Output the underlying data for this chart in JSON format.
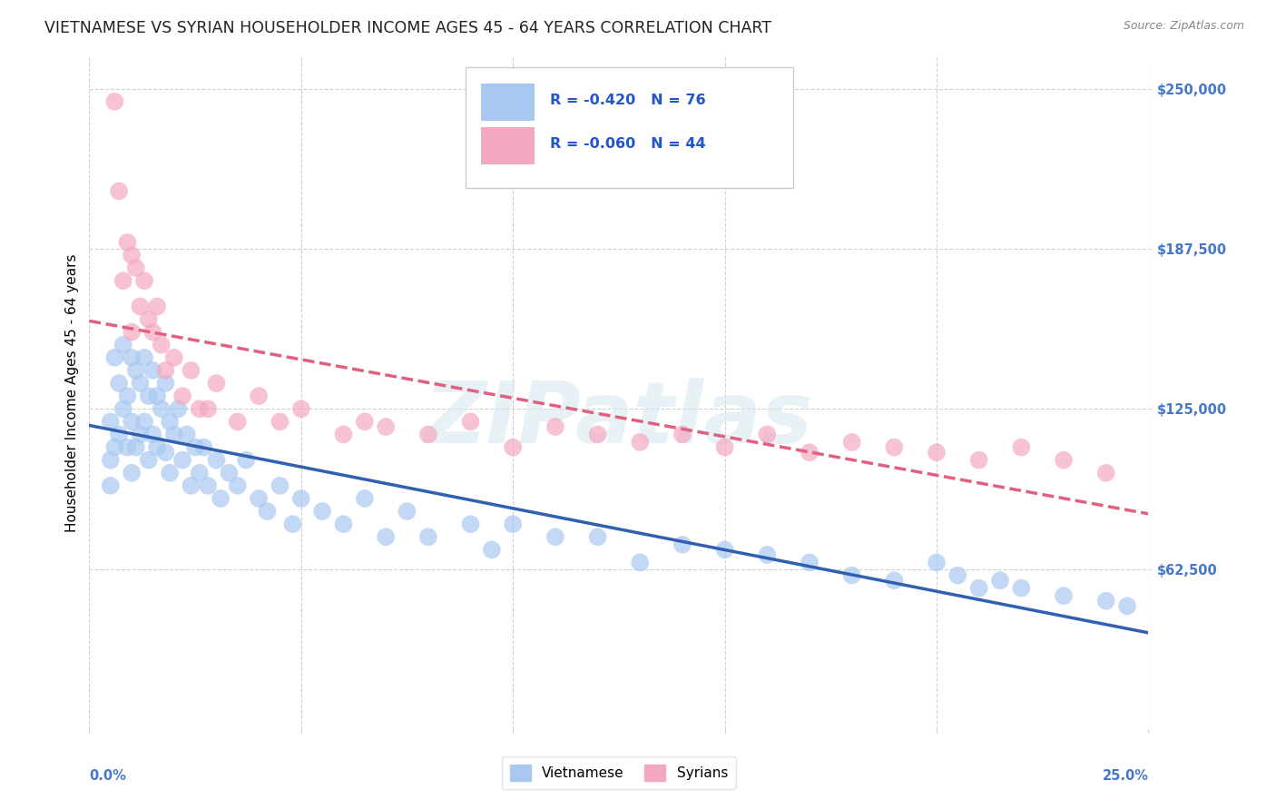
{
  "title": "VIETNAMESE VS SYRIAN HOUSEHOLDER INCOME AGES 45 - 64 YEARS CORRELATION CHART",
  "source": "Source: ZipAtlas.com",
  "ylabel": "Householder Income Ages 45 - 64 years",
  "ytick_labels": [
    "$62,500",
    "$125,000",
    "$187,500",
    "$250,000"
  ],
  "ytick_values": [
    62500,
    125000,
    187500,
    250000
  ],
  "ymin": 0,
  "ymax": 262500,
  "xmin": 0.0,
  "xmax": 0.25,
  "R_viet": -0.42,
  "N_viet": 76,
  "R_syr": -0.06,
  "N_syr": 44,
  "viet_color": "#a8c8f0",
  "syr_color": "#f4a8c0",
  "viet_line_color": "#3060b0",
  "syr_line_color": "#e06080",
  "background_color": "#ffffff",
  "grid_color": "#d0d0d0",
  "title_fontsize": 12.5,
  "axis_label_fontsize": 11,
  "tick_label_fontsize": 10.5,
  "legend_bottom": [
    "Vietnamese",
    "Syrians"
  ],
  "viet_x": [
    0.005,
    0.005,
    0.005,
    0.006,
    0.006,
    0.007,
    0.007,
    0.008,
    0.008,
    0.009,
    0.009,
    0.01,
    0.01,
    0.01,
    0.011,
    0.011,
    0.012,
    0.012,
    0.013,
    0.013,
    0.014,
    0.014,
    0.015,
    0.015,
    0.016,
    0.016,
    0.017,
    0.018,
    0.018,
    0.019,
    0.019,
    0.02,
    0.021,
    0.022,
    0.023,
    0.024,
    0.025,
    0.026,
    0.027,
    0.028,
    0.03,
    0.031,
    0.033,
    0.035,
    0.037,
    0.04,
    0.042,
    0.045,
    0.048,
    0.05,
    0.055,
    0.06,
    0.065,
    0.07,
    0.075,
    0.08,
    0.09,
    0.095,
    0.1,
    0.11,
    0.12,
    0.13,
    0.14,
    0.15,
    0.16,
    0.17,
    0.18,
    0.19,
    0.2,
    0.205,
    0.21,
    0.215,
    0.22,
    0.23,
    0.24,
    0.245
  ],
  "viet_y": [
    120000,
    105000,
    95000,
    145000,
    110000,
    135000,
    115000,
    150000,
    125000,
    130000,
    110000,
    145000,
    120000,
    100000,
    140000,
    110000,
    135000,
    115000,
    145000,
    120000,
    130000,
    105000,
    140000,
    115000,
    130000,
    110000,
    125000,
    135000,
    108000,
    120000,
    100000,
    115000,
    125000,
    105000,
    115000,
    95000,
    110000,
    100000,
    110000,
    95000,
    105000,
    90000,
    100000,
    95000,
    105000,
    90000,
    85000,
    95000,
    80000,
    90000,
    85000,
    80000,
    90000,
    75000,
    85000,
    75000,
    80000,
    70000,
    80000,
    75000,
    75000,
    65000,
    72000,
    70000,
    68000,
    65000,
    60000,
    58000,
    65000,
    60000,
    55000,
    58000,
    55000,
    52000,
    50000,
    48000
  ],
  "syr_x": [
    0.006,
    0.007,
    0.008,
    0.009,
    0.01,
    0.01,
    0.011,
    0.012,
    0.013,
    0.014,
    0.015,
    0.016,
    0.017,
    0.018,
    0.02,
    0.022,
    0.024,
    0.026,
    0.028,
    0.03,
    0.035,
    0.04,
    0.045,
    0.05,
    0.06,
    0.065,
    0.07,
    0.08,
    0.09,
    0.1,
    0.11,
    0.12,
    0.13,
    0.14,
    0.15,
    0.16,
    0.17,
    0.18,
    0.19,
    0.2,
    0.21,
    0.22,
    0.23,
    0.24
  ],
  "syr_y": [
    245000,
    210000,
    175000,
    190000,
    185000,
    155000,
    180000,
    165000,
    175000,
    160000,
    155000,
    165000,
    150000,
    140000,
    145000,
    130000,
    140000,
    125000,
    125000,
    135000,
    120000,
    130000,
    120000,
    125000,
    115000,
    120000,
    118000,
    115000,
    120000,
    110000,
    118000,
    115000,
    112000,
    115000,
    110000,
    115000,
    108000,
    112000,
    110000,
    108000,
    105000,
    110000,
    105000,
    100000
  ]
}
